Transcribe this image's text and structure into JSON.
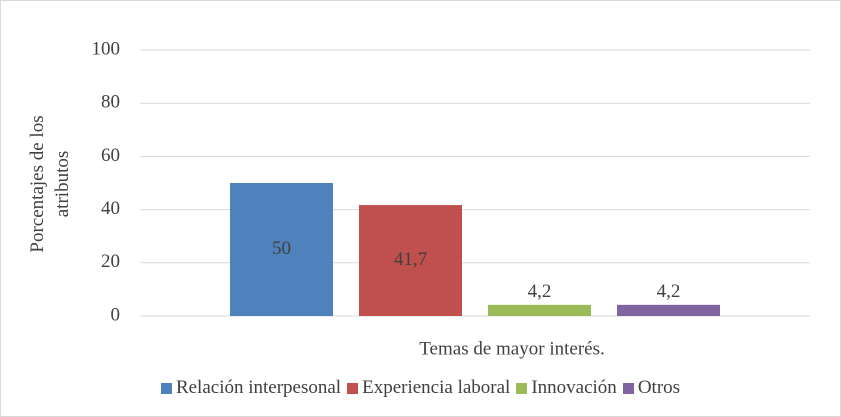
{
  "chart_data": {
    "type": "bar",
    "xlabel": "Temas de mayor interés.",
    "ylabel": "Porcentajes de los atributos",
    "categories": [
      null
    ],
    "series": [
      {
        "name": "Relación interpesonal",
        "color": "#4f81bd",
        "values": [
          50
        ],
        "value_labels": [
          "50"
        ]
      },
      {
        "name": "Experiencia laboral",
        "color": "#c0504d",
        "values": [
          41.7
        ],
        "value_labels": [
          "41,7"
        ]
      },
      {
        "name": "Innovación",
        "color": "#9bbb59",
        "values": [
          4.2
        ],
        "value_labels": [
          "4,2"
        ]
      },
      {
        "name": "Otros",
        "color": "#8064a2",
        "values": [
          4.2
        ],
        "value_labels": [
          "4,2"
        ]
      }
    ],
    "ylim": [
      0,
      100
    ],
    "yticks": [
      0,
      20,
      40,
      60,
      80,
      100
    ],
    "grid": true,
    "legend": "bottom"
  }
}
